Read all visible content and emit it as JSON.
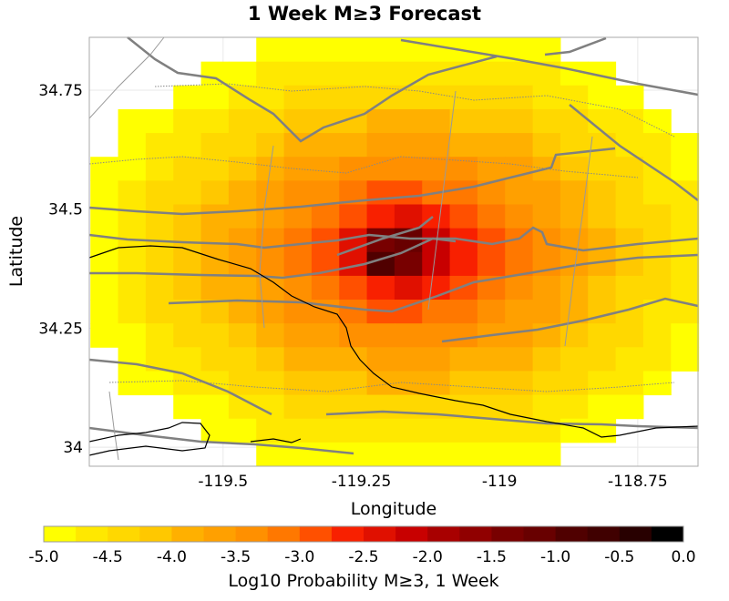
{
  "chart_data": {
    "type": "heatmap",
    "title": "1 Week M≥3 Forecast",
    "xlabel": "Longitude",
    "ylabel": "Latitude",
    "xlim": [
      -119.742,
      -118.641
    ],
    "ylim": [
      33.96,
      34.861
    ],
    "xticks": [
      -119.5,
      -119.25,
      -119,
      -118.75
    ],
    "xtick_labels": [
      "-119.5",
      "-119.25",
      "-119",
      "-118.75"
    ],
    "yticks": [
      34,
      34.25,
      34.5,
      34.75
    ],
    "ytick_labels": [
      "34",
      "34.25",
      "34.5",
      "34.75"
    ],
    "grid": true,
    "cell_size_deg": 0.05,
    "lon_centers": [
      -119.715,
      -119.665,
      -119.615,
      -119.565,
      -119.515,
      -119.465,
      -119.415,
      -119.365,
      -119.315,
      -119.265,
      -119.215,
      -119.165,
      -119.115,
      -119.065,
      -119.015,
      -118.965,
      -118.915,
      -118.865,
      -118.815,
      -118.765,
      -118.715,
      -118.665
    ],
    "lat_centers": [
      34.835,
      34.785,
      34.735,
      34.685,
      34.635,
      34.585,
      34.535,
      34.485,
      34.435,
      34.385,
      34.335,
      34.285,
      34.235,
      34.185,
      34.135,
      34.085,
      34.035,
      33.985
    ],
    "values": [
      [
        null,
        null,
        null,
        null,
        null,
        null,
        -4.9,
        -4.9,
        -4.9,
        -4.8,
        -4.8,
        -4.8,
        -4.8,
        -4.8,
        -4.9,
        -4.9,
        -4.9,
        null,
        null,
        null,
        null,
        null
      ],
      [
        null,
        null,
        null,
        null,
        -4.9,
        -4.9,
        -4.75,
        -4.7,
        -4.6,
        -4.6,
        -4.55,
        -4.55,
        -4.55,
        -4.6,
        -4.6,
        -4.7,
        -4.75,
        -4.9,
        -4.9,
        null,
        null,
        null
      ],
      [
        null,
        null,
        null,
        -4.9,
        -4.8,
        -4.65,
        -4.55,
        -4.45,
        -4.4,
        -4.35,
        -4.3,
        -4.3,
        -4.3,
        -4.35,
        -4.4,
        -4.5,
        -4.6,
        -4.7,
        -4.8,
        -4.9,
        null,
        null
      ],
      [
        null,
        -4.9,
        -4.9,
        -4.7,
        -4.6,
        -4.45,
        -4.35,
        -4.2,
        -4.1,
        -4.05,
        -4.0,
        -4.0,
        -4.0,
        -4.1,
        -4.15,
        -4.25,
        -4.35,
        -4.45,
        -4.6,
        -4.75,
        -4.9,
        null
      ],
      [
        null,
        -4.9,
        -4.75,
        -4.6,
        -4.4,
        -4.3,
        -4.1,
        -4.0,
        -3.9,
        -3.8,
        -3.75,
        -3.7,
        -3.75,
        -3.8,
        -3.9,
        -4.0,
        -4.15,
        -4.3,
        -4.45,
        -4.6,
        -4.75,
        -4.9
      ],
      [
        -4.9,
        -4.8,
        -4.6,
        -4.45,
        -4.3,
        -4.1,
        -3.9,
        -3.75,
        -3.6,
        -3.45,
        -3.4,
        -3.35,
        -3.4,
        -3.5,
        -3.6,
        -3.75,
        -3.95,
        -4.1,
        -4.3,
        -4.5,
        -4.65,
        -4.85
      ],
      [
        -4.9,
        -4.7,
        -4.5,
        -4.35,
        -4.1,
        -3.9,
        -3.7,
        -3.5,
        -3.3,
        -3.15,
        -3.0,
        -2.95,
        -3.05,
        -3.15,
        -3.35,
        -3.55,
        -3.75,
        -3.95,
        -4.15,
        -4.4,
        -4.55,
        -4.7
      ],
      [
        -4.85,
        -4.65,
        -4.45,
        -4.25,
        -4.0,
        -3.8,
        -3.55,
        -3.35,
        -3.05,
        -2.8,
        -2.55,
        -2.5,
        -2.6,
        -2.85,
        -3.1,
        -3.35,
        -3.6,
        -3.85,
        -4.05,
        -4.3,
        -4.5,
        -4.7
      ],
      [
        -4.8,
        -4.6,
        -4.4,
        -4.2,
        -4.0,
        -3.75,
        -3.5,
        -3.25,
        -2.9,
        -2.5,
        -1.3,
        -1.2,
        -2.2,
        -2.6,
        -2.95,
        -3.25,
        -3.5,
        -3.75,
        -4.0,
        -4.25,
        -4.45,
        -4.65
      ],
      [
        -4.8,
        -4.6,
        -4.4,
        -4.2,
        -4.0,
        -3.75,
        -3.5,
        -3.25,
        -2.9,
        -2.3,
        -0.8,
        -1.4,
        -2.2,
        -2.6,
        -2.95,
        -3.25,
        -3.5,
        -3.75,
        -4.0,
        -4.25,
        -4.45,
        -4.65
      ],
      [
        -4.85,
        -4.65,
        -4.45,
        -4.25,
        -4.0,
        -3.8,
        -3.55,
        -3.35,
        -3.05,
        -2.8,
        -2.55,
        -2.5,
        -2.6,
        -2.85,
        -3.1,
        -3.35,
        -3.6,
        -3.85,
        -4.05,
        -4.3,
        -4.5,
        -4.7
      ],
      [
        -4.9,
        -4.7,
        -4.5,
        -4.35,
        -4.1,
        -3.9,
        -3.7,
        -3.5,
        -3.3,
        -3.15,
        -3.0,
        -2.95,
        -3.05,
        -3.15,
        -3.35,
        -3.55,
        -3.75,
        -3.95,
        -4.15,
        -4.4,
        -4.55,
        -4.7
      ],
      [
        -4.9,
        -4.8,
        -4.6,
        -4.45,
        -4.3,
        -4.1,
        -3.9,
        -3.75,
        -3.6,
        -3.45,
        -3.4,
        -3.35,
        -3.4,
        -3.5,
        -3.6,
        -3.75,
        -3.95,
        -4.1,
        -4.3,
        -4.5,
        -4.65,
        -4.85
      ],
      [
        null,
        -4.9,
        -4.75,
        -4.6,
        -4.4,
        -4.3,
        -4.1,
        -4.0,
        -3.9,
        -3.8,
        -3.75,
        -3.7,
        -3.75,
        -3.8,
        -3.9,
        -4.0,
        -4.15,
        -4.3,
        -4.45,
        -4.6,
        -4.75,
        -4.9
      ],
      [
        null,
        -4.9,
        -4.9,
        -4.7,
        -4.6,
        -4.45,
        -4.35,
        -4.2,
        -4.1,
        -4.05,
        -4.0,
        -4.0,
        -4.0,
        -4.1,
        -4.15,
        -4.25,
        -4.35,
        -4.45,
        -4.6,
        -4.75,
        -4.9,
        null
      ],
      [
        null,
        null,
        null,
        -4.9,
        -4.8,
        -4.65,
        -4.55,
        -4.45,
        -4.4,
        -4.35,
        -4.3,
        -4.3,
        -4.3,
        -4.35,
        -4.4,
        -4.5,
        -4.6,
        -4.7,
        -4.8,
        -4.9,
        null,
        null
      ],
      [
        null,
        null,
        null,
        null,
        -4.9,
        -4.9,
        -4.75,
        -4.7,
        -4.6,
        -4.6,
        -4.55,
        -4.55,
        -4.55,
        -4.6,
        -4.6,
        -4.7,
        -4.75,
        -4.9,
        -4.9,
        null,
        null,
        null
      ],
      [
        null,
        null,
        null,
        null,
        null,
        null,
        -4.9,
        -4.9,
        -4.9,
        -4.8,
        -4.8,
        -4.8,
        -4.8,
        -4.8,
        -4.9,
        -4.9,
        -4.9,
        null,
        null,
        null,
        null,
        null
      ]
    ],
    "colorbar": {
      "label": "Log10 Probability M≥3, 1 Week",
      "range": [
        -5.0,
        0.0
      ],
      "tick_labels": [
        "-5.0",
        "-4.5",
        "-4.0",
        "-3.5",
        "-3.0",
        "-2.5",
        "-2.0",
        "-1.5",
        "-1.0",
        "-0.5",
        "0.0"
      ],
      "colors": [
        "#ffff00",
        "#ffe800",
        "#ffd800",
        "#ffc800",
        "#ffb000",
        "#ffa000",
        "#ff9000",
        "#ff7800",
        "#ff5000",
        "#f82000",
        "#e01000",
        "#c80000",
        "#a80000",
        "#900000",
        "#780000",
        "#680000",
        "#500000",
        "#400000",
        "#280000",
        "#000000"
      ]
    }
  }
}
